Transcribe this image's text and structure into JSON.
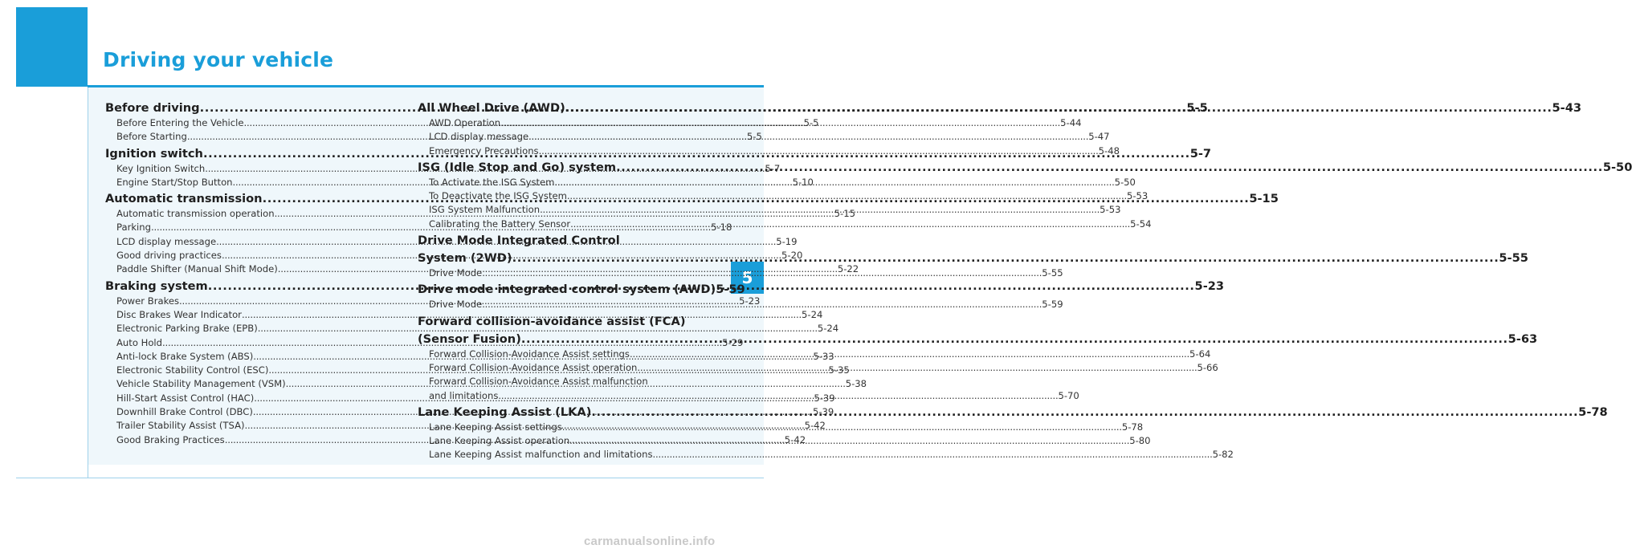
{
  "page": {
    "title": "Driving your vehicle",
    "chapter_number": "5",
    "watermark": "carmanualsonline.info"
  },
  "toc_left": [
    {
      "type": "main",
      "label": "Before driving",
      "page": "5-5"
    },
    {
      "type": "sub",
      "label": "Before Entering the Vehicle ",
      "page": "5-5"
    },
    {
      "type": "sub",
      "label": "Before Starting ",
      "page": "5-5"
    },
    {
      "type": "main",
      "label": "Ignition switch ",
      "page": "5-7"
    },
    {
      "type": "sub",
      "label": "Key Ignition Switch ",
      "page": "5-7"
    },
    {
      "type": "sub",
      "label": "Engine Start/Stop Button ",
      "page": "5-10"
    },
    {
      "type": "main",
      "label": "Automatic transmission ",
      "page": "5-15"
    },
    {
      "type": "sub",
      "label": "Automatic transmission operation  ",
      "page": "5-15"
    },
    {
      "type": "sub",
      "label": "Parking ",
      "page": "5-18"
    },
    {
      "type": "sub",
      "label": "LCD display message ",
      "page": "5-19"
    },
    {
      "type": "sub",
      "label": "Good driving practices  ",
      "page": "5-20"
    },
    {
      "type": "sub",
      "label": "Paddle Shifter (Manual Shift Mode) ",
      "page": "5-22"
    },
    {
      "type": "main",
      "label": "Braking system  ",
      "page": "5-23"
    },
    {
      "type": "sub",
      "label": "Power Brakes ",
      "page": "5-23"
    },
    {
      "type": "sub",
      "label": "Disc Brakes Wear Indicator ",
      "page": "5-24"
    },
    {
      "type": "sub",
      "label": "Electronic Parking Brake (EPB)",
      "page": "5-24"
    },
    {
      "type": "sub",
      "label": "Auto Hold ",
      "page": "5-29"
    },
    {
      "type": "sub",
      "label": "Anti-lock Brake System (ABS) ",
      "page": "5-33"
    },
    {
      "type": "sub",
      "label": "Electronic Stability Control (ESC)",
      "page": "5-35"
    },
    {
      "type": "sub",
      "label": "Vehicle Stability Management (VSM)",
      "page": "5-38"
    },
    {
      "type": "sub",
      "label": "Hill-Start Assist Control (HAC) ",
      "page": "5-39"
    },
    {
      "type": "sub",
      "label": "Downhill Brake Control (DBC) ",
      "page": "5-39"
    },
    {
      "type": "sub",
      "label": "Trailer Stability Assist (TSA)",
      "page": "5-42"
    },
    {
      "type": "sub",
      "label": "Good Braking Practices  ",
      "page": "5-42"
    }
  ],
  "toc_right": [
    {
      "type": "main",
      "label": "All Wheel Drive (AWD) ",
      "page": "5-43"
    },
    {
      "type": "sub",
      "label": "AWD Operation ",
      "page": "5-44"
    },
    {
      "type": "sub",
      "label": "LCD display message ",
      "page": "5-47"
    },
    {
      "type": "sub",
      "label": "Emergency Precautions",
      "page": "5-48"
    },
    {
      "type": "main",
      "label": "ISG (Idle Stop and Go) system ",
      "page": "5-50"
    },
    {
      "type": "sub",
      "label": "To Activate the ISG System ",
      "page": "5-50"
    },
    {
      "type": "sub",
      "label": "To Deactivate the ISG System  ",
      "page": "5-53"
    },
    {
      "type": "sub",
      "label": "ISG System Malfunction ",
      "page": "5-53"
    },
    {
      "type": "sub",
      "label": "Calibrating the Battery Sensor ",
      "page": "5-54"
    },
    {
      "type": "main-text",
      "label": "Drive Mode Integrated Control"
    },
    {
      "type": "main",
      "label": "System (2WD)",
      "page": "5-55"
    },
    {
      "type": "sub",
      "label": "Drive Mode ",
      "page": "5-55"
    },
    {
      "type": "main",
      "label": "Drive mode integrated control system (AWD) ",
      "page": "5-59"
    },
    {
      "type": "sub",
      "label": "Drive Mode ",
      "page": "5-59"
    },
    {
      "type": "main-text",
      "label": "Forward collision-avoidance assist (FCA)"
    },
    {
      "type": "main",
      "label": "(Sensor Fusion)",
      "page": "5-63"
    },
    {
      "type": "sub",
      "label": "Forward Collision-Avoidance Assist settings ",
      "page": "5-64"
    },
    {
      "type": "sub",
      "label": "Forward Collision-Avoidance Assist operation  ",
      "page": "5-66"
    },
    {
      "type": "sub-text",
      "label": "Forward Collision-Avoidance Assist malfunction"
    },
    {
      "type": "sub",
      "label": "and limitations",
      "page": "5-70"
    },
    {
      "type": "main",
      "label": "Lane Keeping Assist (LKA) ",
      "page": "5-78"
    },
    {
      "type": "sub",
      "label": "Lane Keeping Assist settings  ",
      "page": "5-78"
    },
    {
      "type": "sub",
      "label": "Lane Keeping Assist operation ",
      "page": "5-80"
    },
    {
      "type": "sub",
      "label": "Lane Keeping Assist malfunction and limitations ",
      "page": "5-82"
    }
  ]
}
